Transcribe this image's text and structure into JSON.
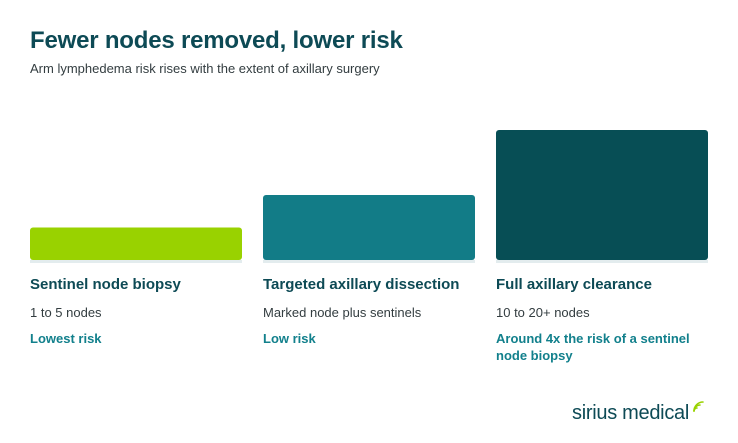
{
  "title": "Fewer nodes removed, lower risk",
  "subtitle": "Arm lymphedema risk rises with the extent of axillary surgery",
  "chart_data": {
    "type": "bar",
    "categories": [
      "Sentinel node biopsy",
      "Targeted axillary dissection",
      "Full axillary clearance"
    ],
    "values": [
      1,
      2,
      4
    ],
    "ylim": [
      0,
      4
    ],
    "colors": [
      "#99d200",
      "#127c87",
      "#074e55"
    ],
    "descriptions": [
      "1 to 5 nodes",
      "Marked node plus sentinels",
      "10 to 20+ nodes"
    ],
    "risk_labels": [
      "Lowest risk",
      "Low risk",
      "Around 4x the risk of a sentinel node biopsy"
    ]
  },
  "brand": {
    "name": "sirius medical",
    "icon": "signal-waves-icon",
    "accent": "#99d200"
  }
}
